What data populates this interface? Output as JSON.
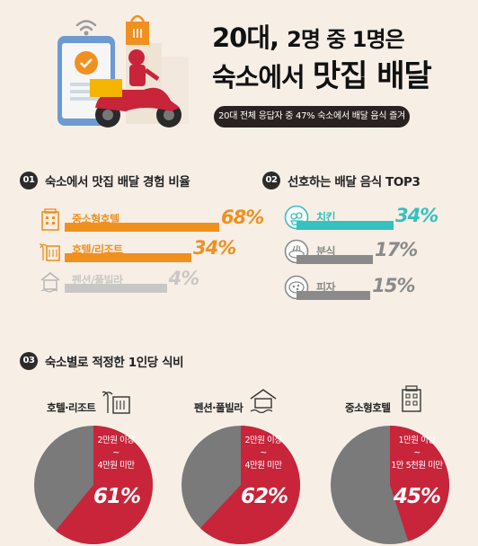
{
  "header": {
    "title_line1_a": "20대,",
    "title_line1_b": "2명 중 1명은",
    "title_line2_a": "숙소에서",
    "title_line2_b": "맛집 배달",
    "subtitle": "20대 전체 응답자 중 47% 숙소에서 배달 음식 즐겨"
  },
  "sections": {
    "s1": {
      "num": "01",
      "title": "숙소에서 맛집 배달 경험 비율"
    },
    "s2": {
      "num": "02",
      "title": "선호하는 배달 음식 TOP3"
    },
    "s3": {
      "num": "03",
      "title": "숙소별로 적정한 1인당 식비"
    }
  },
  "colors": {
    "orange": "#f0901f",
    "gray": "#8a8a8a",
    "teal": "#35c1bd",
    "red": "#c8243a",
    "dark_gray": "#7a7a7a",
    "light_gray": "#c9c7c5"
  },
  "chart_data": [
    {
      "type": "bar",
      "categories": [
        "중소형호텔",
        "호텔/리조트",
        "펜션/풀빌라"
      ],
      "values": [
        68,
        34,
        4
      ],
      "value_labels": [
        "68%",
        "34%",
        "4%"
      ],
      "icons": [
        "small-hotel-icon",
        "resort-icon",
        "pension-icon"
      ]
    },
    {
      "type": "bar",
      "categories": [
        "치킨",
        "분식",
        "피자"
      ],
      "values": [
        34,
        17,
        15
      ],
      "value_labels": [
        "34%",
        "17%",
        "15%"
      ],
      "icons": [
        "chicken-icon",
        "bunsik-icon",
        "pizza-icon"
      ]
    },
    {
      "type": "pie",
      "charts": [
        {
          "name": "호텔·리조트",
          "label_top": "2만원 이상",
          "label_mid": "~",
          "label_bot": "4만원 미만",
          "value": 61,
          "value_label": "61%"
        },
        {
          "name": "펜션·풀빌라",
          "label_top": "2만원 이상",
          "label_mid": "~",
          "label_bot": "4만원 미만",
          "value": 62,
          "value_label": "62%"
        },
        {
          "name": "중소형호텔",
          "label_top": "1만원 이상",
          "label_mid": "~",
          "label_bot": "1만 5천원 미만",
          "value": 45,
          "value_label": "45%"
        }
      ]
    }
  ]
}
